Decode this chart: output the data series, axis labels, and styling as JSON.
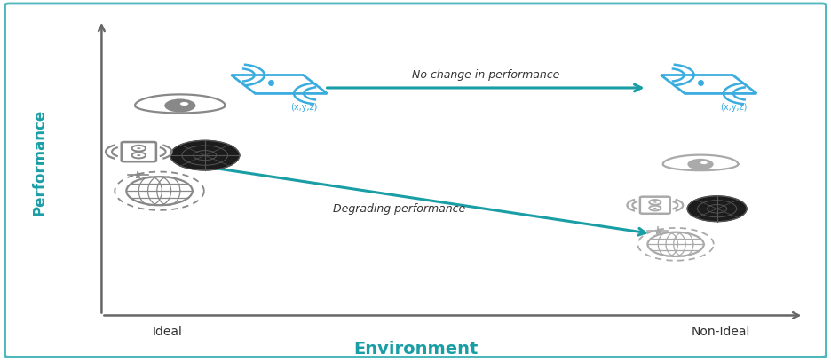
{
  "bg_color": "#ffffff",
  "border_color": "#4db8bc",
  "axis_color": "#666666",
  "teal_color": "#1a9ea5",
  "arrow_color": "#1a9ea5",
  "text_color": "#333333",
  "title_env": "Environment",
  "title_perf": "Performance",
  "label_ideal": "Ideal",
  "label_nonideal": "Non-Ideal",
  "label_no_change": "No change in performance",
  "label_degrading": "Degrading performance",
  "label_xyz": "(x,y,z)",
  "imu_blue": "#3aacde",
  "sensor_gray": "#888888",
  "radar_dark": "#222222"
}
